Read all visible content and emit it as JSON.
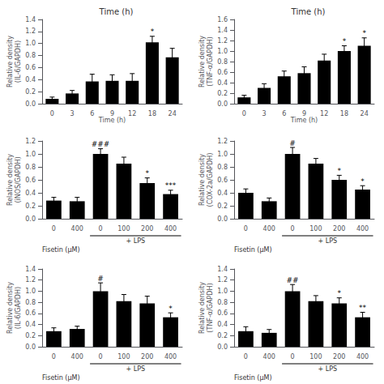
{
  "chart_data": [
    {
      "type": "bar",
      "title": "Time (h)",
      "xlabel": "Time (h)",
      "ylabel": "Relative density\n(IL-6/GAPDH)",
      "categories": [
        "0",
        "3",
        "6",
        "9",
        "12",
        "18",
        "24"
      ],
      "values": [
        0.08,
        0.17,
        0.37,
        0.38,
        0.38,
        1.02,
        0.77
      ],
      "errors": [
        0.03,
        0.05,
        0.12,
        0.1,
        0.12,
        0.1,
        0.15
      ],
      "annotations": [
        null,
        null,
        null,
        null,
        null,
        "*",
        null
      ],
      "color": "#000000",
      "ylim": [
        0,
        1.4
      ],
      "yticks": [
        {
          "value": 0,
          "label": "0.0"
        },
        0.2,
        0.4,
        0.6,
        0.8,
        {
          "value": 1,
          "label": "1.0"
        },
        1.2,
        1.4
      ],
      "grid": false
    },
    {
      "type": "bar",
      "title": "Time (h)",
      "xlabel": "Time (h)",
      "ylabel": "Relative density\n(TNF-α/GAPDH)",
      "categories": [
        "0",
        "3",
        "6",
        "9",
        "12",
        "18",
        "24"
      ],
      "values": [
        0.12,
        0.3,
        0.52,
        0.58,
        0.82,
        1.0,
        1.1
      ],
      "errors": [
        0.04,
        0.08,
        0.1,
        0.12,
        0.12,
        0.1,
        0.15
      ],
      "annotations": [
        null,
        null,
        null,
        null,
        null,
        "*",
        "*"
      ],
      "color": "#000000",
      "ylim": [
        0,
        1.6
      ],
      "yticks": [
        {
          "value": 0,
          "label": "0.0"
        },
        0.2,
        0.4,
        0.6,
        0.8,
        {
          "value": 1,
          "label": "1.0"
        },
        1.2,
        1.4,
        1.6
      ],
      "grid": false
    },
    {
      "type": "bar",
      "xlabel": "Fisetin (μM)",
      "ylabel": "Relative density\n(iNOS/GAPDH)",
      "categories": [
        "0",
        "400",
        "0",
        "100",
        "200",
        "400"
      ],
      "group_labels": [
        null,
        null,
        "+ LPS",
        "+ LPS",
        "+ LPS",
        "+ LPS"
      ],
      "values": [
        0.28,
        0.27,
        1.0,
        0.85,
        0.55,
        0.38
      ],
      "errors": [
        0.05,
        0.06,
        0.08,
        0.1,
        0.08,
        0.06
      ],
      "annotations": [
        null,
        null,
        "###",
        null,
        "*",
        "***"
      ],
      "color": "#000000",
      "ylim": [
        0,
        1.2
      ],
      "yticks": [
        {
          "value": 0,
          "label": "0.0"
        },
        0.2,
        0.4,
        0.6,
        0.8,
        {
          "value": 1,
          "label": "1.0"
        },
        1.2
      ],
      "grid": false
    },
    {
      "type": "bar",
      "xlabel": "Fisetin (μM)",
      "ylabel": "Relative density\n(COX-2a/GAPDH)",
      "categories": [
        "0",
        "400",
        "0",
        "100",
        "200",
        "400"
      ],
      "group_labels": [
        null,
        null,
        "+ LPS",
        "+ LPS",
        "+ LPS",
        "+ LPS"
      ],
      "values": [
        0.4,
        0.27,
        1.0,
        0.85,
        0.6,
        0.45
      ],
      "errors": [
        0.06,
        0.05,
        0.1,
        0.08,
        0.07,
        0.06
      ],
      "annotations": [
        null,
        null,
        "#",
        null,
        "*",
        "*"
      ],
      "color": "#000000",
      "ylim": [
        0,
        1.2
      ],
      "yticks": [
        {
          "value": 0,
          "label": "0.0"
        },
        0.2,
        0.4,
        0.6,
        0.8,
        {
          "value": 1,
          "label": "1.0"
        },
        1.2
      ],
      "grid": false
    },
    {
      "type": "bar",
      "xlabel": "Fisetin (μM)",
      "ylabel": "Relative density\n(IL-6/GAPDH)",
      "categories": [
        "0",
        "400",
        "0",
        "100",
        "200",
        "400"
      ],
      "group_labels": [
        null,
        null,
        "+ LPS",
        "+ LPS",
        "+ LPS",
        "+ LPS"
      ],
      "values": [
        0.28,
        0.32,
        1.0,
        0.82,
        0.78,
        0.53
      ],
      "errors": [
        0.06,
        0.05,
        0.15,
        0.12,
        0.13,
        0.08
      ],
      "annotations": [
        null,
        null,
        "#",
        null,
        null,
        "*"
      ],
      "color": "#000000",
      "ylim": [
        0,
        1.4
      ],
      "yticks": [
        {
          "value": 0,
          "label": "0.0"
        },
        0.2,
        0.4,
        0.6,
        0.8,
        {
          "value": 1,
          "label": "1.0"
        },
        1.2,
        1.4
      ],
      "grid": false
    },
    {
      "type": "bar",
      "xlabel": "Fisetin (μM)",
      "ylabel": "Relative density\n(TNF-α/GAPDH)",
      "categories": [
        "0",
        "400",
        "0",
        "100",
        "200",
        "400"
      ],
      "group_labels": [
        null,
        null,
        "+ LPS",
        "+ LPS",
        "+ LPS",
        "+ LPS"
      ],
      "values": [
        0.28,
        0.25,
        1.0,
        0.82,
        0.78,
        0.53
      ],
      "errors": [
        0.08,
        0.06,
        0.12,
        0.1,
        0.1,
        0.09
      ],
      "annotations": [
        null,
        null,
        "##",
        null,
        "*",
        "**"
      ],
      "color": "#000000",
      "ylim": [
        0,
        1.4
      ],
      "yticks": [
        {
          "value": 0,
          "label": "0.0"
        },
        0.2,
        0.4,
        0.6,
        0.8,
        {
          "value": 1,
          "label": "1.0"
        },
        1.2,
        1.4
      ],
      "grid": false
    }
  ]
}
